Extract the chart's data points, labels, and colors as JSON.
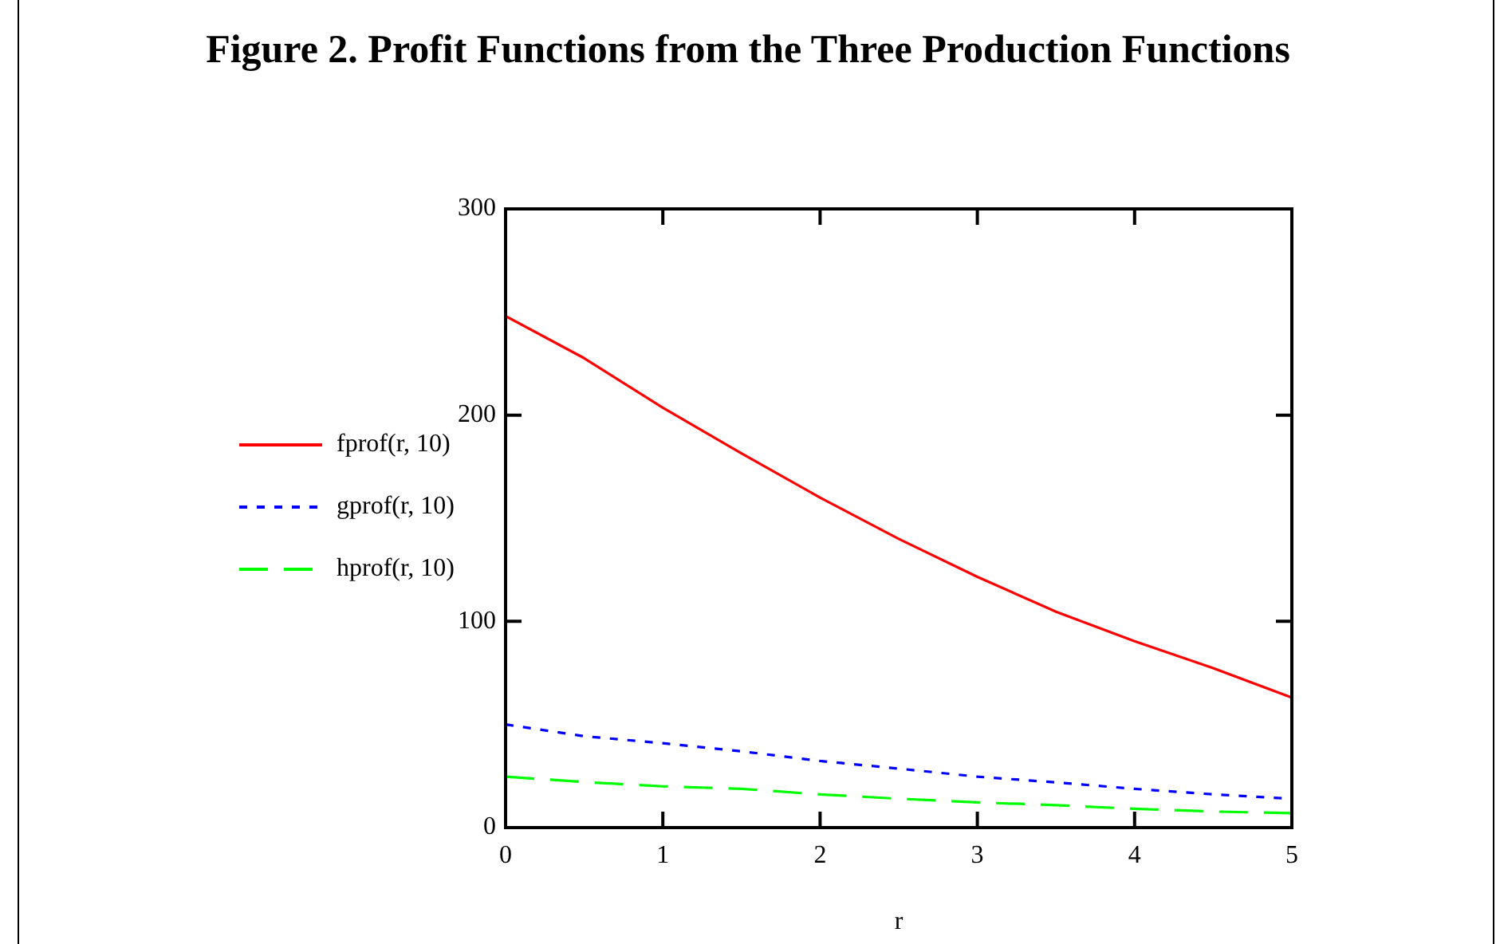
{
  "chart_data": {
    "type": "line",
    "title": "Figure 2.  Profit Functions from the Three Production Functions",
    "xlabel": "r",
    "x": [
      0,
      0.5,
      1,
      1.5,
      2,
      2.5,
      3,
      3.5,
      4,
      4.5,
      5
    ],
    "series": [
      {
        "name": "fprof(r, 10)",
        "color": "#ff0000",
        "line_style": "solid",
        "values": [
          248,
          227.6,
          203.6,
          181.5,
          160,
          140,
          121.6,
          104.7,
          90.4,
          77.3,
          63
        ]
      },
      {
        "name": "gprof(r, 10)",
        "color": "#0000ff",
        "line_style": "dotted",
        "values": [
          50,
          44.3,
          40.9,
          37,
          32.3,
          28.6,
          24.7,
          21.9,
          18.8,
          16.1,
          14
        ]
      },
      {
        "name": "hprof(r, 10)",
        "color": "#00ff00",
        "line_style": "dashed",
        "values": [
          24.7,
          22.1,
          20,
          18.8,
          16.1,
          14,
          12.2,
          10.9,
          9.1,
          7.8,
          7
        ]
      }
    ],
    "xlim": [
      0,
      5
    ],
    "xticks": [
      0,
      1,
      2,
      3,
      4,
      5
    ],
    "ylim": [
      0,
      300
    ],
    "yticks": [
      0,
      100,
      200,
      300
    ],
    "grid": false,
    "legend": "left",
    "marker": "none"
  }
}
